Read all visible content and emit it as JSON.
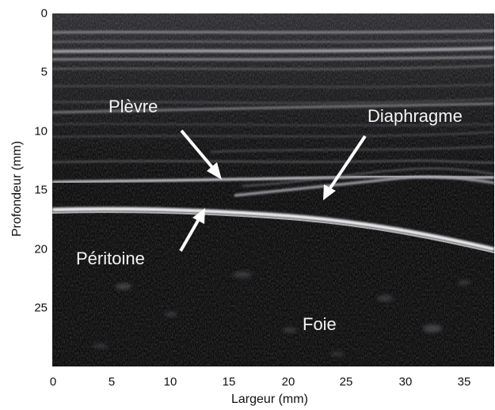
{
  "figure": {
    "xlabel": "Largeur (mm)",
    "ylabel": "Profondeur (mm)",
    "x_ticks": [
      "0",
      "5",
      "10",
      "15",
      "20",
      "25",
      "30",
      "35"
    ],
    "y_ticks": [
      "0",
      "5",
      "10",
      "15",
      "20",
      "25"
    ],
    "x_range_mm": [
      0,
      37.5
    ],
    "y_range_mm": [
      0,
      30
    ]
  },
  "annotations": {
    "plevre": "Plèvre",
    "diaphragme": "Diaphragme",
    "peritoine": "Péritoine",
    "foie": "Foie"
  },
  "colors": {
    "image_background": "#0c0c0d",
    "bright_echo": "#e8e8ea",
    "annotation_text": "#f4f4f4",
    "axis_text": "#111111"
  }
}
